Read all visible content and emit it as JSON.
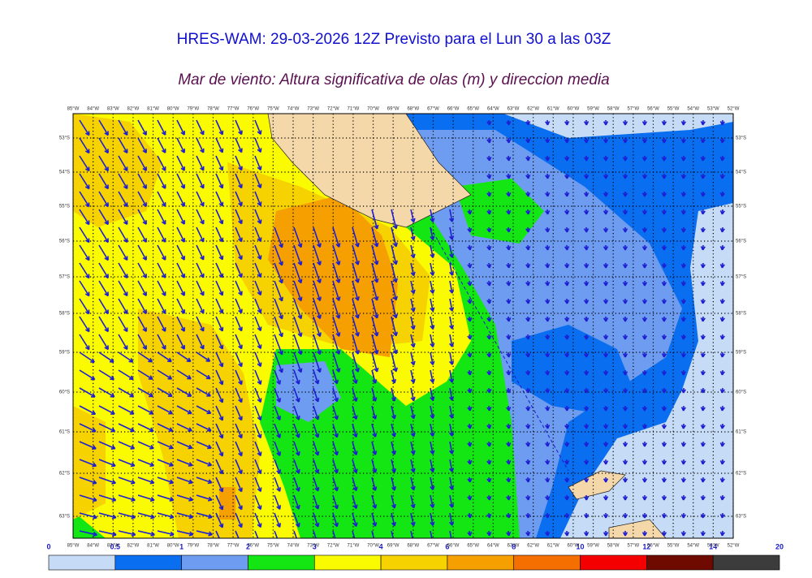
{
  "header": {
    "title": "HRES-WAM: 29-03-2026 12Z Previsto para el Lun 30 a las 03Z",
    "subtitle": "Mar de viento: Altura significativa de olas (m) y direccion media"
  },
  "map": {
    "lon_labels": [
      "85°W",
      "84°W",
      "83°W",
      "82°W",
      "81°W",
      "80°W",
      "79°W",
      "78°W",
      "77°W",
      "76°W",
      "75°W",
      "74°W",
      "73°W",
      "72°W",
      "71°W",
      "70°W",
      "69°W",
      "68°W",
      "67°W",
      "66°W",
      "65°W",
      "64°W",
      "63°W",
      "62°W",
      "61°W",
      "60°W",
      "59°W",
      "58°W",
      "57°W",
      "56°W",
      "55°W",
      "54°W",
      "53°W",
      "52°W"
    ],
    "lat_labels": [
      "53°S",
      "54°S",
      "55°S",
      "56°S",
      "57°S",
      "58°S",
      "59°S",
      "60°S",
      "61°S",
      "62°S",
      "63°S"
    ]
  },
  "colorbar": {
    "labels": [
      "0",
      "0.5",
      "1",
      "2",
      "3",
      "4",
      "6",
      "8",
      "10",
      "12",
      "14",
      "20"
    ],
    "colors": [
      "#c6dcf6",
      "#0a6ef0",
      "#6e9cf0",
      "#14e614",
      "#fafa00",
      "#f5d200",
      "#f5a000",
      "#f56e00",
      "#f50000",
      "#6e0a00",
      "#3c3c3c"
    ]
  }
}
